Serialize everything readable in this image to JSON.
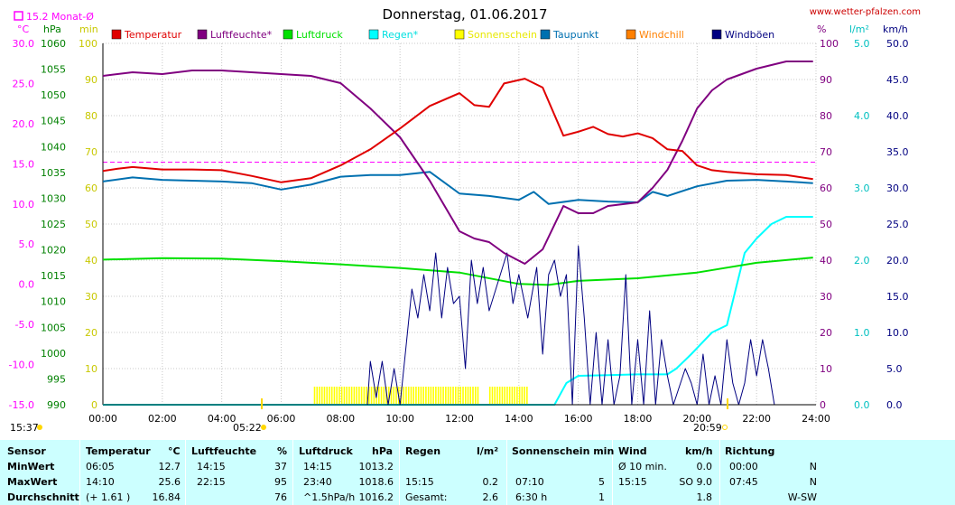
{
  "title": "Donnerstag, 01.06.2017",
  "site": "www.wetter-pfalzen.com",
  "monthly_avg_label": "15.2 Monat-Ø",
  "units": {
    "temp": "°C",
    "pressure": "hPa",
    "sun": "min",
    "humidity": "%",
    "rain": "l/m²",
    "wind": "km/h"
  },
  "legend": [
    {
      "label": "Temperatur",
      "color": "#e00000"
    },
    {
      "label": "Luftfeuchte*",
      "color": "#800080"
    },
    {
      "label": "Luftdruck",
      "color": "#00e000"
    },
    {
      "label": "Regen*",
      "color": "#00ffff"
    },
    {
      "label": "Sonnenschein",
      "color": "#ffff00"
    },
    {
      "label": "Taupunkt",
      "color": "#0070b0"
    },
    {
      "label": "Windchill",
      "color": "#ff8000"
    },
    {
      "label": "Windböen",
      "color": "#000080"
    }
  ],
  "sunrise": "05:22",
  "sunset": "20:59",
  "moon": "15:37",
  "chart_data": {
    "type": "line",
    "x_ticks": [
      "00:00",
      "02:00",
      "04:00",
      "06:00",
      "08:00",
      "10:00",
      "12:00",
      "14:00",
      "16:00",
      "18:00",
      "20:00",
      "22:00",
      "24:00"
    ],
    "axes": {
      "temp": {
        "ticks": [
          "30.0",
          "25.0",
          "20.0",
          "15.0",
          "10.0",
          "5.0",
          "0.0",
          "-5.0",
          "-10.0",
          "-15.0"
        ],
        "range": [
          -15,
          30
        ],
        "color": "#ff00ff"
      },
      "pressure": {
        "ticks": [
          "1060",
          "1055",
          "1050",
          "1045",
          "1040",
          "1035",
          "1030",
          "1025",
          "1020",
          "1015",
          "1010",
          "1005",
          "1000",
          "995",
          "990"
        ],
        "range": [
          990,
          1060
        ],
        "color": "#008000"
      },
      "sun": {
        "ticks": [
          "100",
          "90",
          "80",
          "70",
          "60",
          "50",
          "40",
          "30",
          "20",
          "10",
          "0"
        ],
        "range": [
          0,
          100
        ],
        "color": "#c8c800"
      },
      "humidity": {
        "ticks": [
          "100",
          "90",
          "80",
          "70",
          "60",
          "50",
          "40",
          "30",
          "20",
          "10",
          "0"
        ],
        "range": [
          0,
          100
        ],
        "color": "#800080"
      },
      "rain": {
        "ticks": [
          "5.0",
          "4.0",
          "3.0",
          "2.0",
          "1.0",
          "0.0"
        ],
        "range": [
          0,
          5
        ],
        "color": "#00c0c0"
      },
      "wind": {
        "ticks": [
          "50.0",
          "45.0",
          "40.0",
          "35.0",
          "30.0",
          "25.0",
          "20.0",
          "15.0",
          "10.0",
          "5.0",
          "0.0"
        ],
        "range": [
          0,
          50
        ],
        "color": "#000080"
      }
    },
    "monthly_avg_temp": 15.2,
    "series": [
      {
        "name": "Temperatur",
        "axis": "temp",
        "color": "#e00000",
        "points": [
          [
            0,
            14.1
          ],
          [
            0.5,
            14.4
          ],
          [
            1,
            14.6
          ],
          [
            2,
            14.3
          ],
          [
            3,
            14.3
          ],
          [
            4,
            14.2
          ],
          [
            5,
            13.5
          ],
          [
            6,
            12.7
          ],
          [
            7,
            13.2
          ],
          [
            8,
            14.8
          ],
          [
            9,
            16.8
          ],
          [
            10,
            19.4
          ],
          [
            11,
            22.2
          ],
          [
            12,
            23.8
          ],
          [
            12.5,
            22.3
          ],
          [
            13,
            22.1
          ],
          [
            13.5,
            25.0
          ],
          [
            14.2,
            25.6
          ],
          [
            14.8,
            24.5
          ],
          [
            15.5,
            18.5
          ],
          [
            16,
            19.0
          ],
          [
            16.5,
            19.6
          ],
          [
            17,
            18.7
          ],
          [
            17.5,
            18.4
          ],
          [
            18,
            18.8
          ],
          [
            18.5,
            18.2
          ],
          [
            19,
            16.8
          ],
          [
            19.5,
            16.6
          ],
          [
            20,
            14.8
          ],
          [
            20.5,
            14.2
          ],
          [
            21,
            14.0
          ],
          [
            22,
            13.7
          ],
          [
            23,
            13.6
          ],
          [
            23.9,
            13.1
          ]
        ]
      },
      {
        "name": "Luftfeuchte*",
        "axis": "humidity",
        "color": "#800080",
        "points": [
          [
            0,
            91
          ],
          [
            1,
            92
          ],
          [
            2,
            91.5
          ],
          [
            3,
            92.5
          ],
          [
            4,
            92.5
          ],
          [
            5,
            92
          ],
          [
            6,
            91.5
          ],
          [
            7,
            91
          ],
          [
            8,
            89
          ],
          [
            9,
            82
          ],
          [
            10,
            74
          ],
          [
            11,
            62
          ],
          [
            12,
            48
          ],
          [
            12.5,
            46
          ],
          [
            13,
            45
          ],
          [
            13.5,
            42
          ],
          [
            14.2,
            39
          ],
          [
            14.8,
            43
          ],
          [
            15.5,
            55
          ],
          [
            16,
            53
          ],
          [
            16.5,
            53
          ],
          [
            17,
            55
          ],
          [
            18,
            56
          ],
          [
            18.5,
            60
          ],
          [
            19,
            65
          ],
          [
            19.5,
            73
          ],
          [
            20,
            82
          ],
          [
            20.5,
            87
          ],
          [
            21,
            90
          ],
          [
            22,
            93
          ],
          [
            22.5,
            94
          ],
          [
            23,
            95
          ],
          [
            23.9,
            95
          ]
        ]
      },
      {
        "name": "Luftdruck",
        "axis": "pressure",
        "color": "#00e000",
        "points": [
          [
            0,
            1018.1
          ],
          [
            2,
            1018.4
          ],
          [
            4,
            1018.3
          ],
          [
            6,
            1017.8
          ],
          [
            8,
            1017.2
          ],
          [
            10,
            1016.5
          ],
          [
            12,
            1015.6
          ],
          [
            14,
            1013.4
          ],
          [
            15,
            1013.2
          ],
          [
            16,
            1014.0
          ],
          [
            18,
            1014.5
          ],
          [
            20,
            1015.6
          ],
          [
            22,
            1017.5
          ],
          [
            23.9,
            1018.5
          ]
        ]
      },
      {
        "name": "Taupunkt",
        "axis": "temp",
        "color": "#0070b0",
        "points": [
          [
            0,
            12.8
          ],
          [
            1,
            13.3
          ],
          [
            2,
            13.0
          ],
          [
            3,
            12.9
          ],
          [
            4,
            12.8
          ],
          [
            5,
            12.6
          ],
          [
            6,
            11.8
          ],
          [
            7,
            12.4
          ],
          [
            8,
            13.4
          ],
          [
            9,
            13.6
          ],
          [
            10,
            13.6
          ],
          [
            11,
            14.0
          ],
          [
            12,
            11.3
          ],
          [
            13,
            11.0
          ],
          [
            14,
            10.5
          ],
          [
            14.5,
            11.5
          ],
          [
            15,
            10.0
          ],
          [
            16,
            10.5
          ],
          [
            17,
            10.3
          ],
          [
            18,
            10.2
          ],
          [
            18.5,
            11.5
          ],
          [
            19,
            11.0
          ],
          [
            20,
            12.2
          ],
          [
            21,
            12.9
          ],
          [
            22,
            13.0
          ],
          [
            23,
            12.8
          ],
          [
            23.9,
            12.6
          ]
        ]
      },
      {
        "name": "Regen*",
        "axis": "rain",
        "color": "#00ffff",
        "points": [
          [
            0,
            0
          ],
          [
            15.2,
            0
          ],
          [
            15.6,
            0.3
          ],
          [
            16,
            0.4
          ],
          [
            17,
            0.41
          ],
          [
            18,
            0.42
          ],
          [
            19,
            0.42
          ],
          [
            19.3,
            0.5
          ],
          [
            19.8,
            0.7
          ],
          [
            20.5,
            1.0
          ],
          [
            21,
            1.1
          ],
          [
            21.3,
            1.6
          ],
          [
            21.6,
            2.1
          ],
          [
            22,
            2.3
          ],
          [
            22.5,
            2.5
          ],
          [
            23,
            2.6
          ],
          [
            23.9,
            2.6
          ]
        ]
      },
      {
        "name": "Windböen",
        "axis": "wind",
        "color": "#000080",
        "points": [
          [
            8.9,
            0
          ],
          [
            9.0,
            6
          ],
          [
            9.2,
            1
          ],
          [
            9.4,
            6
          ],
          [
            9.6,
            0
          ],
          [
            9.8,
            5
          ],
          [
            10,
            0
          ],
          [
            10.2,
            8
          ],
          [
            10.4,
            16
          ],
          [
            10.6,
            12
          ],
          [
            10.8,
            18
          ],
          [
            11,
            13
          ],
          [
            11.2,
            21
          ],
          [
            11.4,
            12
          ],
          [
            11.6,
            19
          ],
          [
            11.8,
            14
          ],
          [
            12,
            15
          ],
          [
            12.2,
            5
          ],
          [
            12.4,
            20
          ],
          [
            12.6,
            14
          ],
          [
            12.8,
            19
          ],
          [
            13,
            13
          ],
          [
            13.3,
            17
          ],
          [
            13.6,
            21
          ],
          [
            13.8,
            14
          ],
          [
            14,
            18
          ],
          [
            14.3,
            12
          ],
          [
            14.6,
            19
          ],
          [
            14.8,
            7
          ],
          [
            15,
            18
          ],
          [
            15.2,
            20
          ],
          [
            15.4,
            15
          ],
          [
            15.6,
            18
          ],
          [
            15.8,
            0
          ],
          [
            16,
            22
          ],
          [
            16.2,
            12
          ],
          [
            16.4,
            0
          ],
          [
            16.6,
            10
          ],
          [
            16.8,
            0
          ],
          [
            17,
            9
          ],
          [
            17.2,
            0
          ],
          [
            17.4,
            4
          ],
          [
            17.6,
            18
          ],
          [
            17.8,
            0
          ],
          [
            18,
            9
          ],
          [
            18.2,
            0
          ],
          [
            18.4,
            13
          ],
          [
            18.6,
            0
          ],
          [
            18.8,
            9
          ],
          [
            19,
            4
          ],
          [
            19.2,
            0
          ],
          [
            19.6,
            5
          ],
          [
            19.8,
            3
          ],
          [
            20,
            0
          ],
          [
            20.2,
            7
          ],
          [
            20.4,
            0
          ],
          [
            20.6,
            4
          ],
          [
            20.8,
            0
          ],
          [
            21.0,
            9
          ],
          [
            21.2,
            3
          ],
          [
            21.4,
            0
          ],
          [
            21.6,
            3
          ],
          [
            21.8,
            9
          ],
          [
            22,
            4
          ],
          [
            22.2,
            9
          ],
          [
            22.4,
            5
          ],
          [
            22.6,
            0
          ]
        ]
      }
    ],
    "sunshine_blocks": [
      [
        7.1,
        12.6
      ],
      [
        13.0,
        14.25
      ]
    ]
  },
  "stats": {
    "col_headers": {
      "sensor": "Sensor",
      "temp": "Temperatur",
      "temp_u": "°C",
      "hum": "Luftfeuchte",
      "hum_u": "%",
      "pres": "Luftdruck",
      "pres_u": "hPa",
      "rain": "Regen",
      "rain_u": "l/m²",
      "sun": "Sonnenschein min",
      "wind": "Wind",
      "wind_u": "km/h",
      "dir": "Richtung"
    },
    "rows": [
      {
        "label": "MinWert",
        "t_time": "06:05",
        "t_val": "12.7",
        "h_time": "14:15",
        "h_val": "37",
        "p_time": "14:15",
        "p_val": "1013.2",
        "r_time": "",
        "r_val": "",
        "s_time": "",
        "s_val": "",
        "w_time": "Ø 10 min.",
        "w_val": "0.0",
        "d_time": "00:00",
        "d_val": "N"
      },
      {
        "label": "MaxWert",
        "t_time": "14:10",
        "t_val": "25.6",
        "h_time": "22:15",
        "h_val": "95",
        "p_time": "23:40",
        "p_val": "1018.6",
        "r_time": "15:15",
        "r_val": "0.2",
        "s_time": "07:10",
        "s_val": "5",
        "w_time": "15:15",
        "w_val": "SO 9.0",
        "d_time": "07:45",
        "d_val": "N"
      },
      {
        "label": "Durchschnitt",
        "t_time": "(+ 1.61 )",
        "t_val": "16.84",
        "h_time": "",
        "h_val": "76",
        "p_time": "^1.5hPa/h",
        "p_val": "1016.2",
        "r_time": "Gesamt:",
        "r_val": "2.6",
        "s_time": "6:30 h",
        "s_val": "1",
        "w_time": "",
        "w_val": "1.8",
        "d_time": "",
        "d_val": "W-SW"
      }
    ]
  }
}
